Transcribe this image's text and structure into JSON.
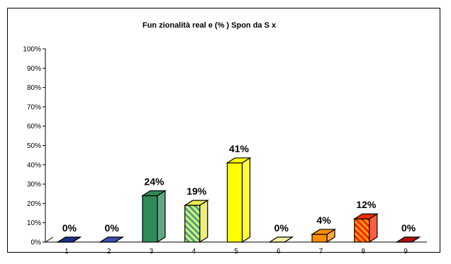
{
  "chart_data": {
    "type": "bar",
    "title": "Fun zionalità real e (% ) Spon da S x",
    "categories": [
      "1",
      "2",
      "3",
      "4",
      "5",
      "6",
      "7",
      "8",
      "9"
    ],
    "values": [
      0,
      0,
      24,
      19,
      41,
      0,
      4,
      12,
      0
    ],
    "data_labels": [
      "0%",
      "0%",
      "24%",
      "19%",
      "41%",
      "0%",
      "4%",
      "12%",
      "0%"
    ],
    "ylim": [
      0,
      100
    ],
    "yticks": [
      "0%",
      "10%",
      "20%",
      "30%",
      "40%",
      "50%",
      "60%",
      "70%",
      "80%",
      "90%",
      "100%"
    ],
    "grid": false,
    "legend": "none",
    "bar_colors": [
      "#1c2f8a",
      "#3d4fb0",
      "#2e8b57",
      "#e8e850",
      "#ffff00",
      "#f5f0a0",
      "#ff8c00",
      "#ff2a00",
      "#b01010"
    ],
    "bar_patterns": [
      "solid",
      "solid",
      "solid",
      "stripes-teal",
      "solid",
      "solid",
      "solid",
      "stripes-orange",
      "solid"
    ]
  }
}
